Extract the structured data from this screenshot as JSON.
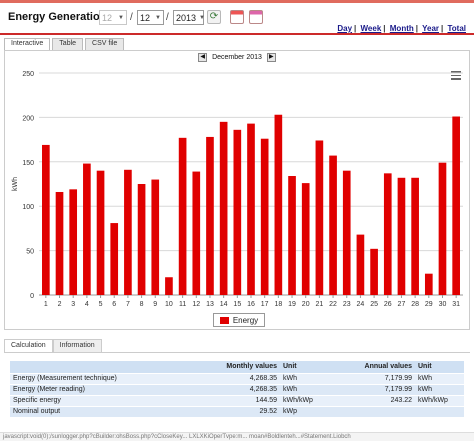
{
  "header": {
    "title": "Energy Generation",
    "day_value": "12",
    "month_value": "12",
    "year_value": "2013",
    "links": [
      "Day",
      "Week",
      "Month",
      "Year",
      "Total"
    ]
  },
  "tabs": [
    "Interactive",
    "Table",
    "CSV file"
  ],
  "chart_nav": {
    "label": "December 2013"
  },
  "chart_data": {
    "type": "bar",
    "categories": [
      "1",
      "2",
      "3",
      "4",
      "5",
      "6",
      "7",
      "8",
      "9",
      "10",
      "11",
      "12",
      "13",
      "14",
      "15",
      "16",
      "17",
      "18",
      "19",
      "20",
      "21",
      "22",
      "23",
      "24",
      "25",
      "26",
      "27",
      "28",
      "29",
      "30",
      "31"
    ],
    "series": [
      {
        "name": "Energy",
        "color": "#e00000",
        "values": [
          169,
          116,
          119,
          148,
          140,
          81,
          141,
          125,
          130,
          20,
          177,
          139,
          178,
          195,
          186,
          193,
          176,
          203,
          134,
          126,
          174,
          157,
          140,
          68,
          52,
          137,
          132,
          132,
          24,
          149,
          201
        ]
      }
    ],
    "ylabel": "kWh",
    "ylim": [
      0,
      250
    ],
    "yticks": [
      0,
      50,
      100,
      150,
      200,
      250
    ],
    "grid": true,
    "legend": "bottom-center"
  },
  "lower_tabs": [
    "Calculation",
    "Information"
  ],
  "calc_table": {
    "headers": [
      "",
      "Monthly values",
      "Unit",
      "Annual values",
      "Unit"
    ],
    "rows": [
      [
        "Energy (Measurement technique)",
        "4,268.35",
        "kWh",
        "7,179.99",
        "kWh"
      ],
      [
        "Energy (Meter reading)",
        "4,268.35",
        "kWh",
        "7,179.99",
        "kWh"
      ],
      [
        "Specific energy",
        "144.59",
        "kWh/kWp",
        "243.22",
        "kWh/kWp"
      ],
      [
        "Nominal output",
        "29.52",
        "kWp",
        "",
        ""
      ]
    ]
  },
  "status_text": "javascript:void(0);/sunlogger.php?cBuilder:ohsBoss.php?cCloseKey... LXLXKiOperTvpe:m... moan#Boldlenteh...#Statement.Liobch"
}
